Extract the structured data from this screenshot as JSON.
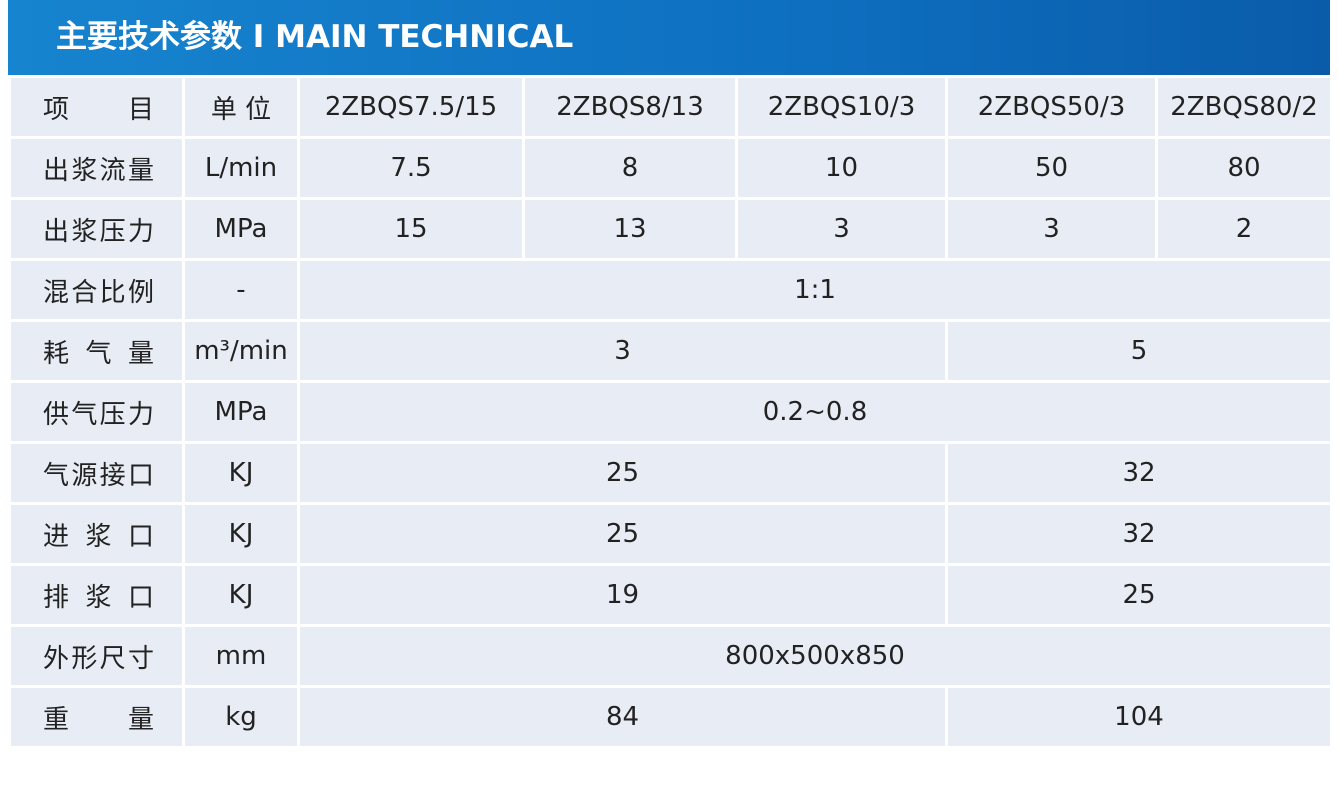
{
  "header": {
    "title": "主要技术参数 I MAIN TECHNICAL"
  },
  "table": {
    "columns": [
      "项 目",
      "单 位",
      "2ZBQS7.5/15",
      "2ZBQS8/13",
      "2ZBQS10/3",
      "2ZBQS50/3",
      "2ZBQS80/2"
    ],
    "rows": [
      [
        "出浆流量",
        "L/min",
        "7.5",
        "8",
        "10",
        "50",
        "80"
      ],
      [
        "出浆压力",
        "MPa",
        "15",
        "13",
        "3",
        "3",
        "2"
      ],
      [
        "混合比例",
        "-",
        "1:1"
      ],
      [
        "耗 气 量",
        "m³/min",
        "3",
        "5"
      ],
      [
        "供气压力",
        "MPa",
        "0.2~0.8"
      ],
      [
        "气源接口",
        "KJ",
        "25",
        "32"
      ],
      [
        "进 浆 口",
        "KJ",
        "25",
        "32"
      ],
      [
        "排 浆 口",
        "KJ",
        "19",
        "25"
      ],
      [
        "外形尺寸",
        "mm",
        "800x500x850"
      ],
      [
        "重 量",
        "kg",
        "84",
        "104"
      ]
    ]
  }
}
